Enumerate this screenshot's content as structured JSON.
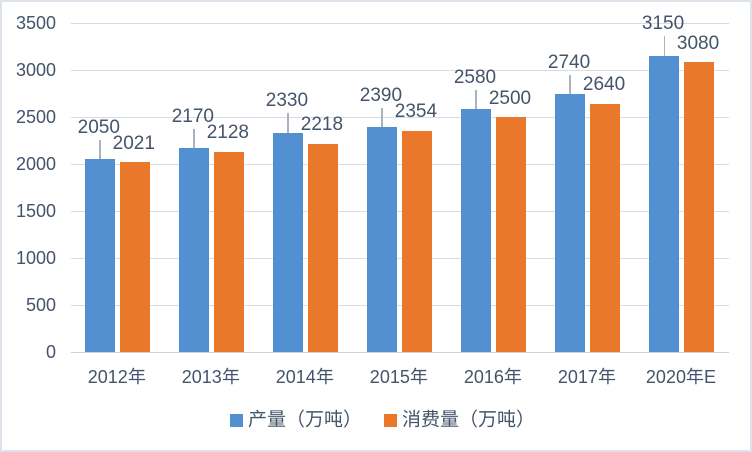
{
  "chart_data": {
    "type": "bar",
    "categories": [
      "2012年",
      "2013年",
      "2014年",
      "2015年",
      "2016年",
      "2017年",
      "2020年E"
    ],
    "series": [
      {
        "name": "产量（万吨）",
        "values": [
          2050,
          2170,
          2330,
          2390,
          2580,
          2740,
          3150
        ],
        "color": "#5290d1",
        "error_whisker": true
      },
      {
        "name": "消费量（万吨）",
        "values": [
          2021,
          2128,
          2218,
          2354,
          2500,
          2640,
          3080
        ],
        "color": "#ea782a",
        "error_whisker": false
      }
    ],
    "title": "",
    "xlabel": "",
    "ylabel": "",
    "ylim": [
      0,
      3500
    ],
    "ytick_step": 500,
    "yticks": [
      "0",
      "500",
      "1000",
      "1500",
      "2000",
      "2500",
      "3000",
      "3500"
    ],
    "grid": "horizontal",
    "legend_position": "bottom",
    "data_labels": true
  },
  "legend": {
    "items": [
      {
        "label": "产量（万吨）",
        "color": "#5290d1"
      },
      {
        "label": "消费量（万吨）",
        "color": "#ea782a"
      }
    ]
  }
}
